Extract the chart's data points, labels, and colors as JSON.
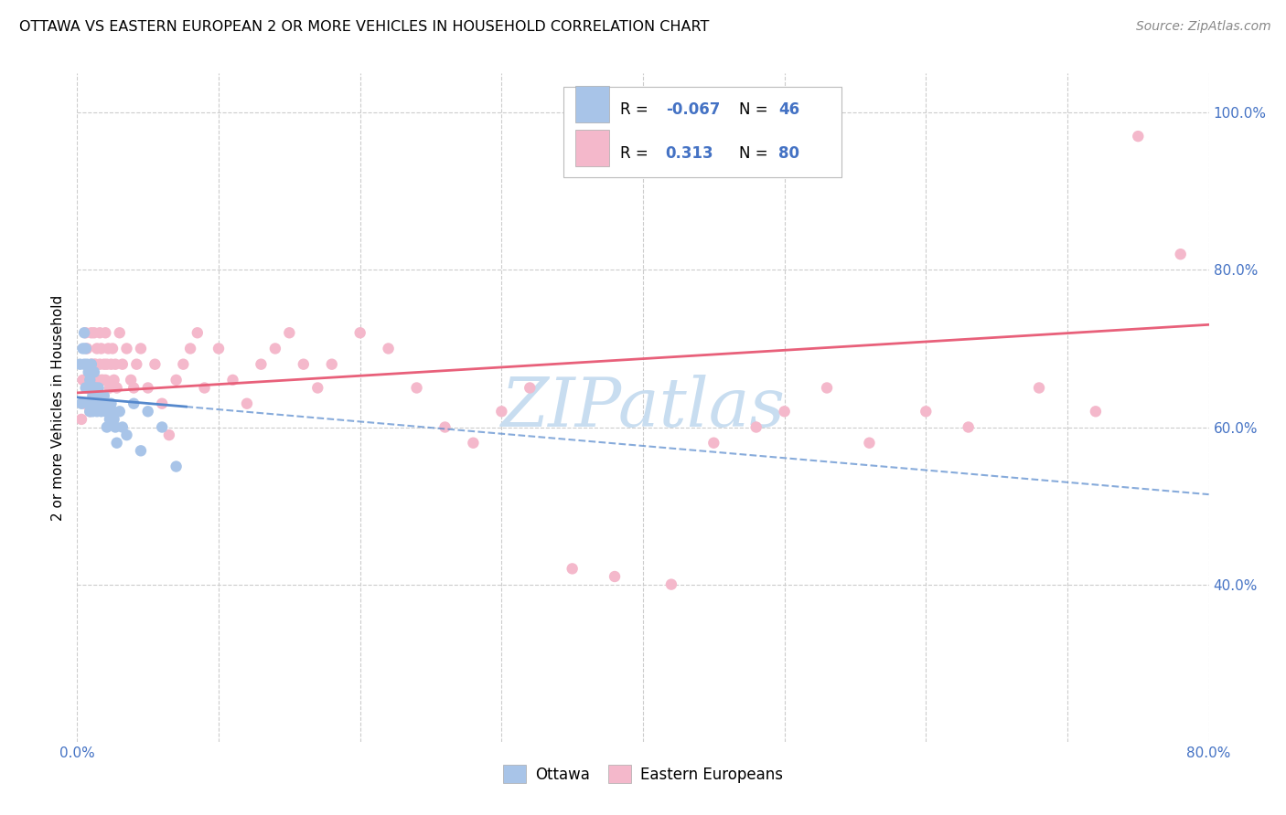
{
  "title": "OTTAWA VS EASTERN EUROPEAN 2 OR MORE VEHICLES IN HOUSEHOLD CORRELATION CHART",
  "source": "Source: ZipAtlas.com",
  "ylabel": "2 or more Vehicles in Household",
  "xlim": [
    0.0,
    0.8
  ],
  "ylim": [
    0.2,
    1.05
  ],
  "x_tick_positions": [
    0.0,
    0.1,
    0.2,
    0.3,
    0.4,
    0.5,
    0.6,
    0.7,
    0.8
  ],
  "x_tick_labels": [
    "0.0%",
    "",
    "",
    "",
    "",
    "",
    "",
    "",
    "80.0%"
  ],
  "y_tick_positions": [
    0.4,
    0.6,
    0.8,
    1.0
  ],
  "y_tick_labels": [
    "40.0%",
    "60.0%",
    "80.0%",
    "100.0%"
  ],
  "ottawa_color": "#a8c4e8",
  "eastern_color": "#f4b8cb",
  "ottawa_line_color": "#5588cc",
  "eastern_line_color": "#e8607a",
  "tick_label_color": "#4472c4",
  "watermark_color": "#c8ddf0",
  "watermark_text": "ZIPatlas",
  "ottawa_R": -0.067,
  "ottawa_N": 46,
  "eastern_R": 0.313,
  "eastern_N": 80,
  "ottawa_x": [
    0.002,
    0.003,
    0.004,
    0.005,
    0.005,
    0.006,
    0.006,
    0.007,
    0.007,
    0.008,
    0.008,
    0.009,
    0.009,
    0.01,
    0.01,
    0.011,
    0.011,
    0.012,
    0.012,
    0.013,
    0.013,
    0.014,
    0.014,
    0.015,
    0.015,
    0.016,
    0.017,
    0.018,
    0.019,
    0.02,
    0.021,
    0.022,
    0.023,
    0.024,
    0.025,
    0.026,
    0.027,
    0.028,
    0.03,
    0.032,
    0.035,
    0.04,
    0.045,
    0.05,
    0.06,
    0.07
  ],
  "ottawa_y": [
    0.68,
    0.63,
    0.7,
    0.72,
    0.68,
    0.65,
    0.7,
    0.68,
    0.65,
    0.67,
    0.63,
    0.66,
    0.62,
    0.65,
    0.68,
    0.64,
    0.62,
    0.65,
    0.67,
    0.63,
    0.65,
    0.62,
    0.64,
    0.63,
    0.65,
    0.64,
    0.62,
    0.63,
    0.64,
    0.62,
    0.6,
    0.63,
    0.61,
    0.63,
    0.62,
    0.61,
    0.6,
    0.58,
    0.62,
    0.6,
    0.59,
    0.63,
    0.57,
    0.62,
    0.6,
    0.55
  ],
  "eastern_x": [
    0.003,
    0.004,
    0.005,
    0.006,
    0.007,
    0.008,
    0.009,
    0.009,
    0.01,
    0.01,
    0.011,
    0.012,
    0.012,
    0.013,
    0.013,
    0.014,
    0.014,
    0.015,
    0.016,
    0.016,
    0.017,
    0.017,
    0.018,
    0.019,
    0.02,
    0.02,
    0.021,
    0.022,
    0.023,
    0.024,
    0.025,
    0.026,
    0.027,
    0.028,
    0.03,
    0.032,
    0.035,
    0.038,
    0.04,
    0.042,
    0.045,
    0.05,
    0.055,
    0.06,
    0.065,
    0.07,
    0.075,
    0.08,
    0.085,
    0.09,
    0.1,
    0.11,
    0.12,
    0.13,
    0.14,
    0.15,
    0.16,
    0.17,
    0.18,
    0.2,
    0.22,
    0.24,
    0.26,
    0.28,
    0.3,
    0.32,
    0.35,
    0.38,
    0.42,
    0.45,
    0.48,
    0.5,
    0.53,
    0.56,
    0.6,
    0.63,
    0.68,
    0.72,
    0.75,
    0.78
  ],
  "eastern_y": [
    0.61,
    0.66,
    0.63,
    0.72,
    0.7,
    0.65,
    0.62,
    0.67,
    0.72,
    0.68,
    0.65,
    0.68,
    0.72,
    0.64,
    0.68,
    0.7,
    0.65,
    0.66,
    0.68,
    0.72,
    0.66,
    0.7,
    0.66,
    0.68,
    0.72,
    0.66,
    0.68,
    0.7,
    0.65,
    0.68,
    0.7,
    0.66,
    0.68,
    0.65,
    0.72,
    0.68,
    0.7,
    0.66,
    0.65,
    0.68,
    0.7,
    0.65,
    0.68,
    0.63,
    0.59,
    0.66,
    0.68,
    0.7,
    0.72,
    0.65,
    0.7,
    0.66,
    0.63,
    0.68,
    0.7,
    0.72,
    0.68,
    0.65,
    0.68,
    0.72,
    0.7,
    0.65,
    0.6,
    0.58,
    0.62,
    0.65,
    0.42,
    0.41,
    0.4,
    0.58,
    0.6,
    0.62,
    0.65,
    0.58,
    0.62,
    0.6,
    0.65,
    0.62,
    0.97,
    0.82
  ]
}
